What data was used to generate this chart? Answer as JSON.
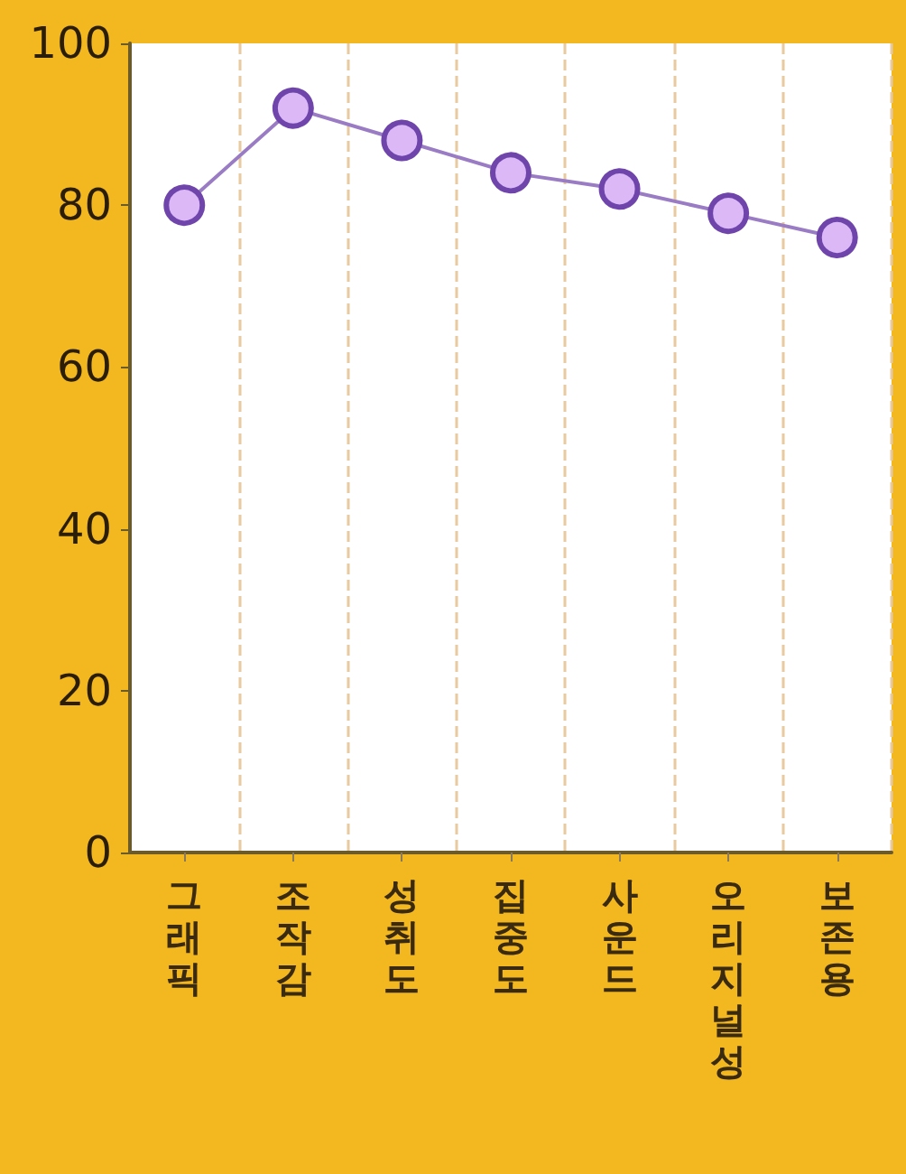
{
  "chart_data": {
    "type": "line",
    "categories": [
      "그래픽",
      "조작감",
      "성취도",
      "집중도",
      "사운드",
      "오리지널성",
      "보존용"
    ],
    "series": [
      {
        "color": "#9a7cc4",
        "values": [
          80,
          92,
          88,
          84,
          82,
          79,
          76
        ]
      }
    ],
    "ylim": [
      0,
      100
    ],
    "yticks": [
      0,
      20,
      40,
      60,
      80,
      100
    ],
    "grid": "x",
    "marker": "circle",
    "line_style": "solid"
  }
}
